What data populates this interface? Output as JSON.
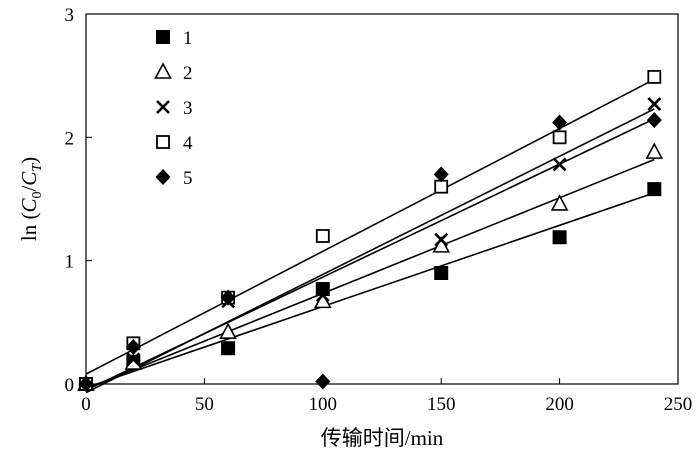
{
  "chart_data": {
    "type": "scatter",
    "xlabel": "传输时间/min",
    "ylabel": "ln (C0/CT)",
    "ylabel_parts": {
      "prefix": "ln (",
      "c": "C",
      "c_sub": "0",
      "slash": "/",
      "t": "C",
      "t_sub": "T",
      "suffix": ")"
    },
    "xlim": [
      0,
      250
    ],
    "ylim": [
      0,
      3
    ],
    "x_ticks": [
      0,
      50,
      100,
      150,
      200,
      250
    ],
    "y_ticks": [
      0,
      1,
      2,
      3
    ],
    "legend_position": "top-left",
    "grid": false,
    "series": [
      {
        "name": "1",
        "marker": "filled-square",
        "x": [
          0,
          20,
          60,
          100,
          150,
          200,
          240
        ],
        "y": [
          0,
          0.18,
          0.29,
          0.77,
          0.9,
          1.19,
          1.58
        ],
        "fit": [
          [
            0,
            -0.03
          ],
          [
            240,
            1.55
          ]
        ]
      },
      {
        "name": "2",
        "marker": "open-triangle",
        "x": [
          0,
          20,
          60,
          100,
          150,
          200,
          240
        ],
        "y": [
          0,
          0.17,
          0.42,
          0.67,
          1.12,
          1.46,
          1.88
        ],
        "fit": [
          [
            0,
            -0.04
          ],
          [
            240,
            1.82
          ]
        ]
      },
      {
        "name": "3",
        "marker": "cross",
        "x": [
          0,
          20,
          60,
          100,
          150,
          200,
          240
        ],
        "y": [
          0,
          0.2,
          0.67,
          0.72,
          1.17,
          1.78,
          2.27
        ],
        "fit": [
          [
            0,
            -0.07
          ],
          [
            240,
            2.23
          ]
        ]
      },
      {
        "name": "4",
        "marker": "open-square",
        "x": [
          0,
          20,
          60,
          100,
          150,
          200,
          240
        ],
        "y": [
          0,
          0.33,
          0.7,
          1.2,
          1.6,
          2.0,
          2.49
        ],
        "fit": [
          [
            0,
            0.08
          ],
          [
            240,
            2.47
          ]
        ]
      },
      {
        "name": "5",
        "marker": "filled-diamond",
        "x": [
          0,
          20,
          60,
          100,
          150,
          200,
          240
        ],
        "y": [
          0,
          0.3,
          0.7,
          0.02,
          1.7,
          2.12,
          2.14
        ],
        "fit": [
          [
            0,
            -0.05
          ],
          [
            240,
            2.15
          ]
        ]
      }
    ]
  }
}
